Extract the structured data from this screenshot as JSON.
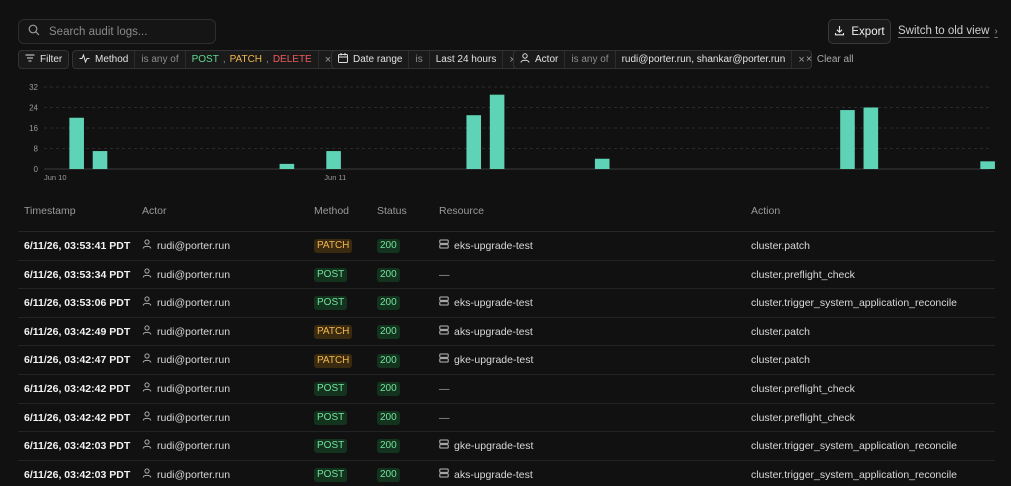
{
  "search": {
    "placeholder": "Search audit logs..."
  },
  "header": {
    "export_label": "Export",
    "old_view_label": "Switch to old view"
  },
  "filters": {
    "filter_label": "Filter",
    "method": {
      "label": "Method",
      "op": "is any of",
      "values": [
        "POST",
        "PATCH",
        "DELETE"
      ]
    },
    "date": {
      "label": "Date range",
      "op": "is",
      "value": "Last 24 hours"
    },
    "actor": {
      "label": "Actor",
      "op": "is any of",
      "value": "rudi@porter.run, shankar@porter.run"
    },
    "clear_label": "Clear all"
  },
  "chart_data": {
    "type": "bar",
    "bar_color": "#5fd3b5",
    "y_ticks": [
      0,
      8,
      16,
      24,
      32
    ],
    "ylim": [
      0,
      32
    ],
    "x_labels": [
      {
        "label": "Jun 10",
        "bin": 0
      },
      {
        "label": "Jun 11",
        "bin": 24
      }
    ],
    "bin_count": 81,
    "bars": [
      {
        "bin": 2,
        "value": 20
      },
      {
        "bin": 4,
        "value": 7
      },
      {
        "bin": 20,
        "value": 2
      },
      {
        "bin": 24,
        "value": 7
      },
      {
        "bin": 36,
        "value": 21
      },
      {
        "bin": 38,
        "value": 29
      },
      {
        "bin": 47,
        "value": 4
      },
      {
        "bin": 68,
        "value": 23
      },
      {
        "bin": 70,
        "value": 24
      },
      {
        "bin": 80,
        "value": 3
      }
    ]
  },
  "table": {
    "columns": [
      "Timestamp",
      "Actor",
      "Method",
      "Status",
      "Resource",
      "Action"
    ],
    "rows": [
      {
        "timestamp": "6/11/26, 03:53:41 PDT",
        "actor": "rudi@porter.run",
        "method": "PATCH",
        "status": "200",
        "resource": "eks-upgrade-test",
        "action": "cluster.patch"
      },
      {
        "timestamp": "6/11/26, 03:53:34 PDT",
        "actor": "rudi@porter.run",
        "method": "POST",
        "status": "200",
        "resource": "—",
        "action": "cluster.preflight_check"
      },
      {
        "timestamp": "6/11/26, 03:53:06 PDT",
        "actor": "rudi@porter.run",
        "method": "POST",
        "status": "200",
        "resource": "eks-upgrade-test",
        "action": "cluster.trigger_system_application_reconcile"
      },
      {
        "timestamp": "6/11/26, 03:42:49 PDT",
        "actor": "rudi@porter.run",
        "method": "PATCH",
        "status": "200",
        "resource": "aks-upgrade-test",
        "action": "cluster.patch"
      },
      {
        "timestamp": "6/11/26, 03:42:47 PDT",
        "actor": "rudi@porter.run",
        "method": "PATCH",
        "status": "200",
        "resource": "gke-upgrade-test",
        "action": "cluster.patch"
      },
      {
        "timestamp": "6/11/26, 03:42:42 PDT",
        "actor": "rudi@porter.run",
        "method": "POST",
        "status": "200",
        "resource": "—",
        "action": "cluster.preflight_check"
      },
      {
        "timestamp": "6/11/26, 03:42:42 PDT",
        "actor": "rudi@porter.run",
        "method": "POST",
        "status": "200",
        "resource": "—",
        "action": "cluster.preflight_check"
      },
      {
        "timestamp": "6/11/26, 03:42:03 PDT",
        "actor": "rudi@porter.run",
        "method": "POST",
        "status": "200",
        "resource": "gke-upgrade-test",
        "action": "cluster.trigger_system_application_reconcile"
      },
      {
        "timestamp": "6/11/26, 03:42:03 PDT",
        "actor": "rudi@porter.run",
        "method": "POST",
        "status": "200",
        "resource": "aks-upgrade-test",
        "action": "cluster.trigger_system_application_reconcile"
      }
    ]
  }
}
